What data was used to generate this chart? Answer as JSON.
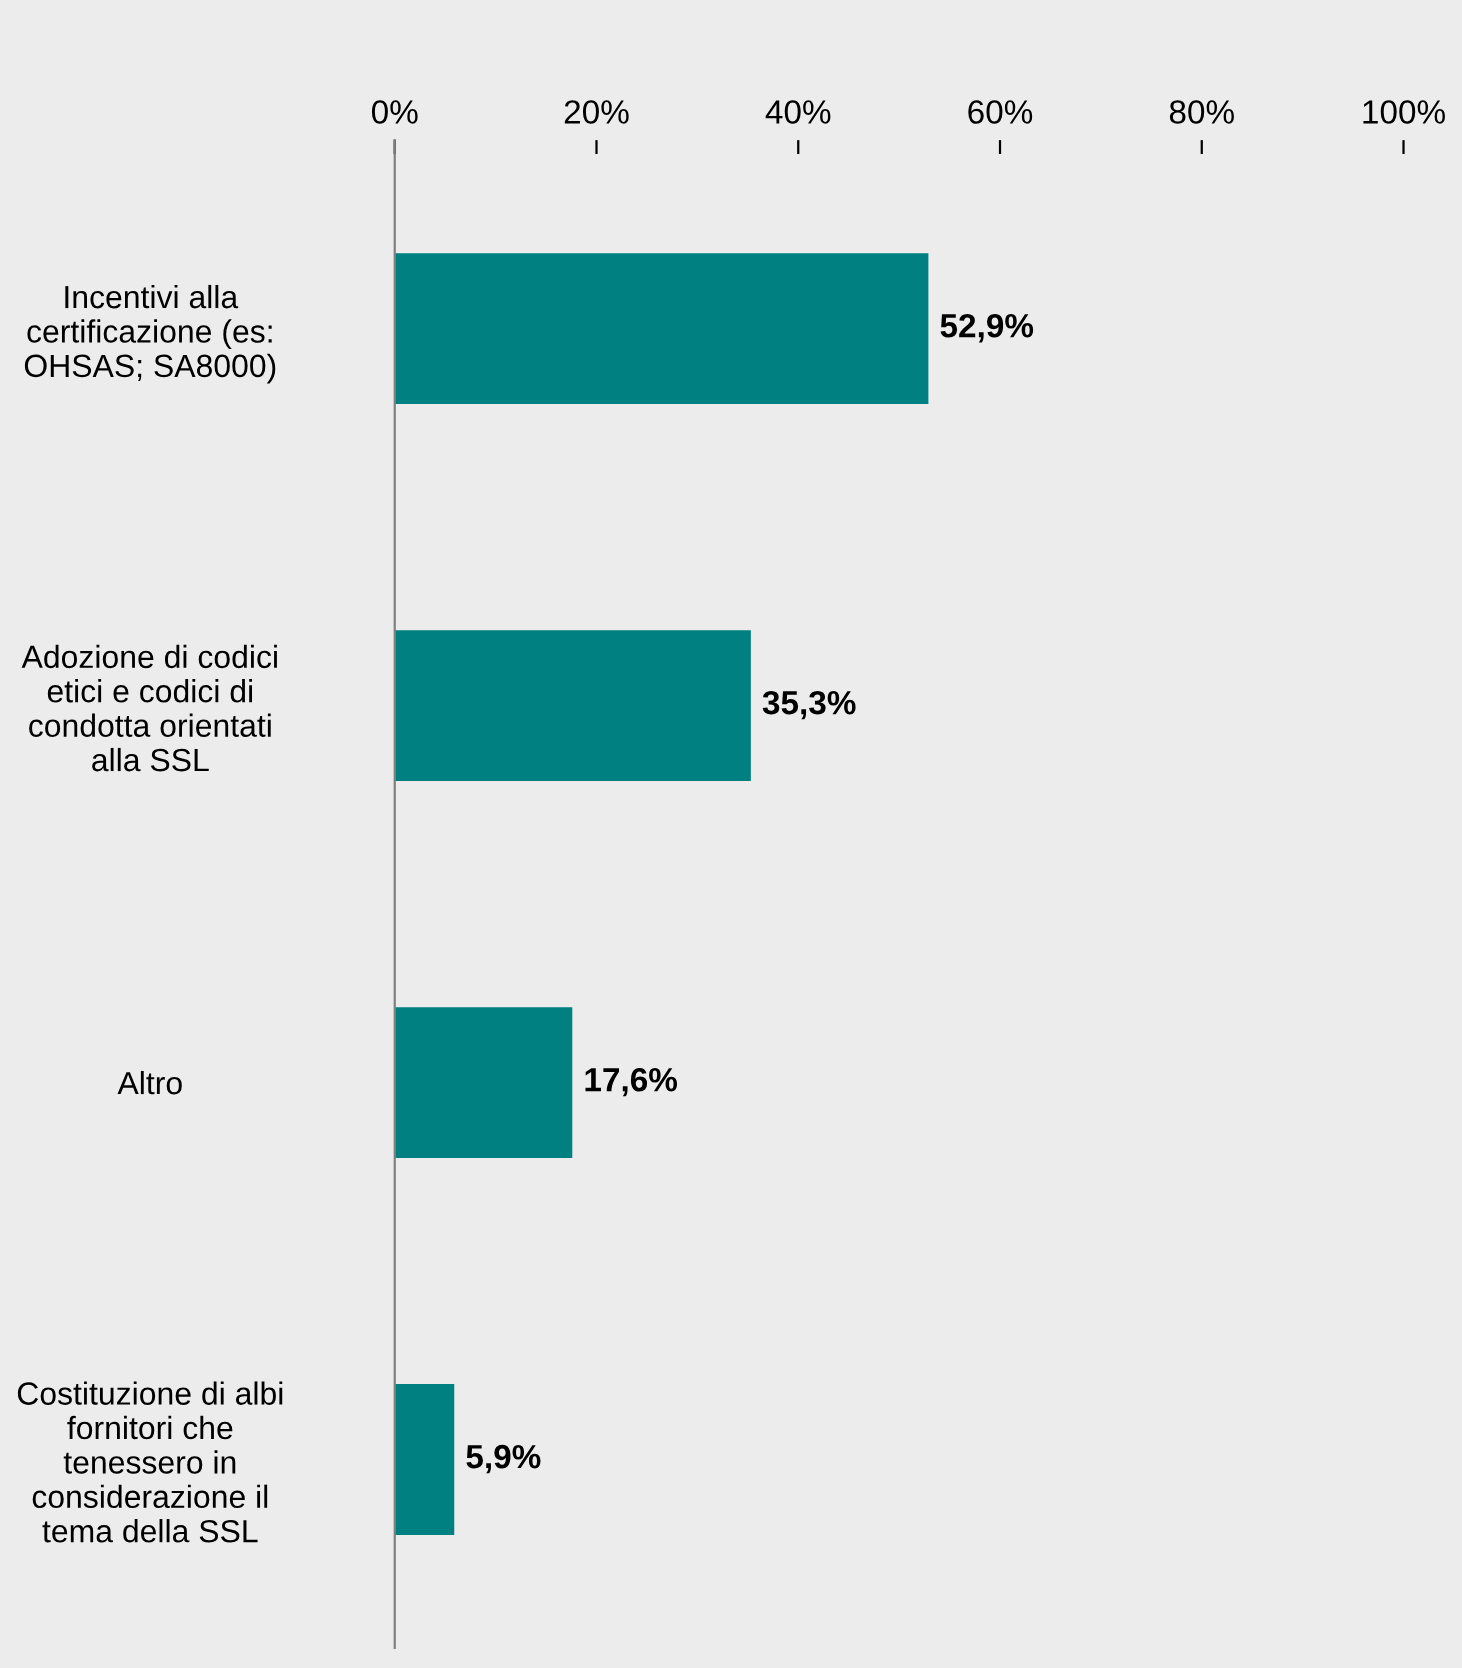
{
  "chart_data": {
    "type": "bar",
    "orientation": "horizontal",
    "categories": [
      "Incentivi alla\ncertificazione (es:\nOHSAS; SA8000)",
      "Adozione di codici\netici e codici di\ncondotta orientati\nalla SSL",
      "Altro",
      "Costituzione di albi\nfornitori che\ntenessero in\nconsiderazione il\ntema della SSL"
    ],
    "values": [
      52.9,
      35.3,
      17.6,
      5.9
    ],
    "value_labels": [
      "52,9%",
      "35,3%",
      "17,6%",
      "5,9%"
    ],
    "color": "#008080",
    "xlim": [
      0,
      100
    ],
    "xticks": [
      {
        "value": 0,
        "label": "0%"
      },
      {
        "value": 20,
        "label": "20%"
      },
      {
        "value": 40,
        "label": "40%"
      },
      {
        "value": 60,
        "label": "60%"
      },
      {
        "value": 80,
        "label": "80%"
      },
      {
        "value": 100,
        "label": "100%"
      }
    ],
    "grid": false,
    "legend": false
  }
}
